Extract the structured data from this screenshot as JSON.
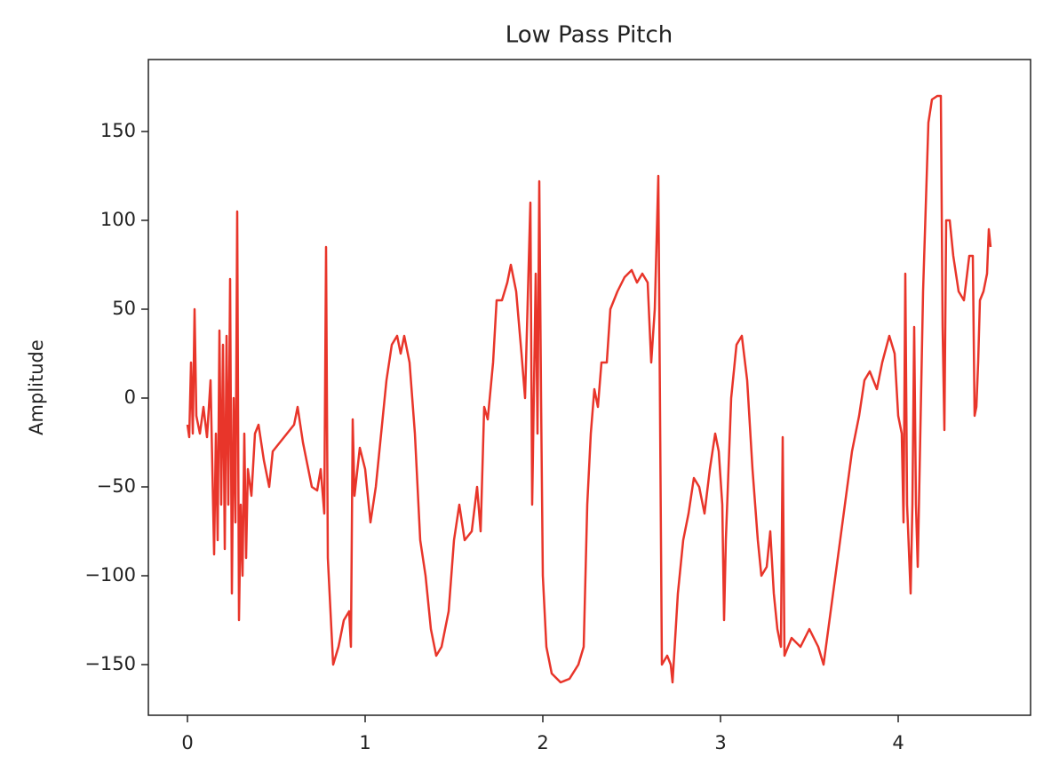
{
  "chart_data": {
    "type": "line",
    "title": "Low Pass Pitch",
    "y_label": "Amplitude",
    "color": "#e8352a",
    "x": [
      0.0,
      0.01,
      0.02,
      0.03,
      0.04,
      0.05,
      0.07,
      0.09,
      0.11,
      0.13,
      0.15,
      0.16,
      0.17,
      0.18,
      0.19,
      0.2,
      0.21,
      0.22,
      0.23,
      0.24,
      0.25,
      0.26,
      0.27,
      0.28,
      0.29,
      0.3,
      0.31,
      0.32,
      0.33,
      0.34,
      0.36,
      0.38,
      0.4,
      0.43,
      0.46,
      0.48,
      0.52,
      0.56,
      0.6,
      0.62,
      0.65,
      0.68,
      0.7,
      0.73,
      0.75,
      0.77,
      0.78,
      0.79,
      0.82,
      0.85,
      0.88,
      0.91,
      0.92,
      0.93,
      0.94,
      0.97,
      1.0,
      1.03,
      1.06,
      1.09,
      1.12,
      1.15,
      1.18,
      1.2,
      1.22,
      1.25,
      1.28,
      1.31,
      1.34,
      1.37,
      1.4,
      1.43,
      1.47,
      1.5,
      1.53,
      1.56,
      1.6,
      1.63,
      1.65,
      1.67,
      1.69,
      1.72,
      1.74,
      1.77,
      1.8,
      1.82,
      1.85,
      1.88,
      1.9,
      1.93,
      1.94,
      1.96,
      1.97,
      1.98,
      1.99,
      2.0,
      2.02,
      2.05,
      2.1,
      2.15,
      2.2,
      2.23,
      2.25,
      2.27,
      2.29,
      2.31,
      2.33,
      2.36,
      2.38,
      2.42,
      2.46,
      2.5,
      2.53,
      2.56,
      2.59,
      2.61,
      2.63,
      2.65,
      2.67,
      2.7,
      2.72,
      2.73,
      2.76,
      2.79,
      2.82,
      2.85,
      2.88,
      2.91,
      2.94,
      2.97,
      2.99,
      3.01,
      3.02,
      3.03,
      3.06,
      3.09,
      3.12,
      3.15,
      3.18,
      3.21,
      3.23,
      3.26,
      3.28,
      3.3,
      3.32,
      3.34,
      3.35,
      3.36,
      3.4,
      3.45,
      3.5,
      3.55,
      3.58,
      3.62,
      3.66,
      3.7,
      3.74,
      3.78,
      3.81,
      3.84,
      3.88,
      3.91,
      3.95,
      3.98,
      4.0,
      4.02,
      4.03,
      4.04,
      4.05,
      4.07,
      4.08,
      4.09,
      4.1,
      4.11,
      4.14,
      4.17,
      4.19,
      4.22,
      4.24,
      4.25,
      4.26,
      4.27,
      4.29,
      4.31,
      4.34,
      4.37,
      4.4,
      4.42,
      4.43,
      4.44,
      4.45,
      4.46,
      4.48,
      4.5,
      4.51,
      4.52
    ],
    "values": [
      -15,
      -22,
      20,
      -20,
      50,
      -10,
      -20,
      -5,
      -22,
      10,
      -88,
      -20,
      -80,
      38,
      -60,
      30,
      -85,
      35,
      -60,
      67,
      -110,
      0,
      -70,
      105,
      -125,
      -60,
      -100,
      -20,
      -90,
      -40,
      -55,
      -20,
      -15,
      -35,
      -50,
      -30,
      -25,
      -20,
      -15,
      -5,
      -25,
      -40,
      -50,
      -52,
      -40,
      -65,
      85,
      -90,
      -150,
      -140,
      -125,
      -120,
      -140,
      -12,
      -55,
      -28,
      -40,
      -70,
      -50,
      -20,
      10,
      30,
      35,
      25,
      35,
      20,
      -20,
      -80,
      -100,
      -130,
      -145,
      -140,
      -120,
      -80,
      -60,
      -80,
      -75,
      -50,
      -75,
      -5,
      -12,
      20,
      55,
      55,
      65,
      75,
      60,
      25,
      0,
      110,
      -60,
      70,
      -20,
      122,
      0,
      -100,
      -140,
      -155,
      -160,
      -158,
      -150,
      -140,
      -60,
      -20,
      5,
      -5,
      20,
      20,
      50,
      60,
      68,
      72,
      65,
      70,
      65,
      20,
      50,
      125,
      -150,
      -145,
      -150,
      -160,
      -110,
      -80,
      -65,
      -45,
      -50,
      -65,
      -40,
      -20,
      -30,
      -60,
      -125,
      -80,
      0,
      30,
      35,
      10,
      -40,
      -80,
      -100,
      -95,
      -75,
      -110,
      -130,
      -140,
      -22,
      -145,
      -135,
      -140,
      -130,
      -140,
      -150,
      -120,
      -90,
      -60,
      -30,
      -10,
      10,
      15,
      5,
      20,
      35,
      25,
      -10,
      -20,
      -70,
      70,
      -60,
      -110,
      -60,
      40,
      -60,
      -95,
      60,
      155,
      168,
      170,
      170,
      40,
      -18,
      100,
      100,
      80,
      60,
      55,
      80,
      80,
      -10,
      -5,
      20,
      55,
      60,
      70,
      95,
      85
    ],
    "xlim": [
      -0.22,
      4.745
    ],
    "xticks": [
      0,
      1,
      2,
      3,
      4
    ],
    "ylim": [
      -178.5,
      190.5
    ],
    "yticks": [
      {
        "value": -150,
        "label": "−150"
      },
      {
        "value": -100,
        "label": "−100"
      },
      {
        "value": -50,
        "label": "−50"
      },
      0,
      50,
      100,
      150
    ]
  }
}
